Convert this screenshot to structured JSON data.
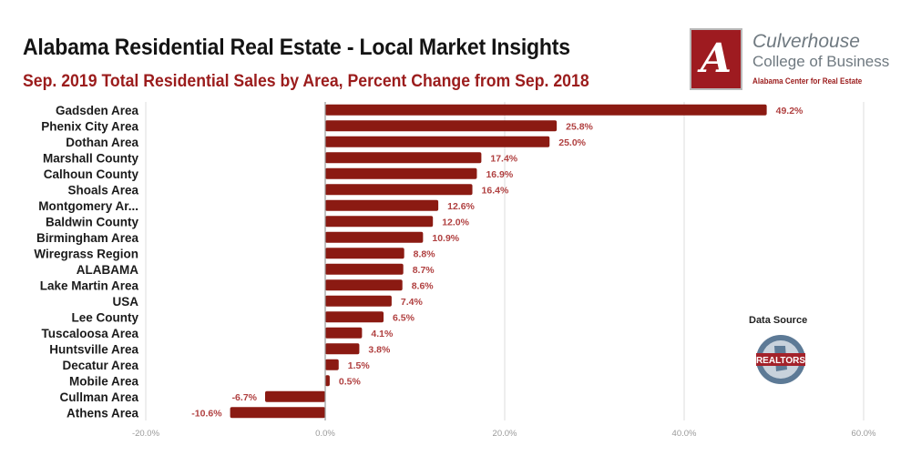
{
  "header": {
    "title": "Alabama Residential Real Estate - Local Market Insights",
    "subtitle": "Sep. 2019 Total Residential Sales by Area, Percent Change from Sep. 2018"
  },
  "branding": {
    "logo_letter": "A",
    "line1": "Culverhouse",
    "line2": "College of Business",
    "line3": "Alabama Center for Real Estate"
  },
  "data_source": {
    "label": "Data Source",
    "badge_text": "REALTORS"
  },
  "colors": {
    "bar": "#8b1a12",
    "value_label": "#b04040",
    "grid": "#dddddd",
    "axis": "#999999"
  },
  "chart_data": {
    "type": "bar",
    "orientation": "horizontal",
    "title": "Sep. 2019 Total Residential Sales by Area, Percent Change from Sep. 2018",
    "xlabel": "",
    "ylabel": "",
    "xlim": [
      -20,
      60
    ],
    "grid": true,
    "categories": [
      "Gadsden Area",
      "Phenix City Area",
      "Dothan Area",
      "Marshall County",
      "Calhoun County",
      "Shoals Area",
      "Montgomery Ar...",
      "Baldwin County",
      "Birmingham Area",
      "Wiregrass Region",
      "ALABAMA",
      "Lake Martin Area",
      "USA",
      "Lee County",
      "Tuscaloosa Area",
      "Huntsville Area",
      "Decatur Area",
      "Mobile Area",
      "Cullman Area",
      "Athens Area"
    ],
    "values": [
      49.2,
      25.8,
      25.0,
      17.4,
      16.9,
      16.4,
      12.6,
      12.0,
      10.9,
      8.8,
      8.7,
      8.6,
      7.4,
      6.5,
      4.1,
      3.8,
      1.5,
      0.5,
      -6.7,
      -10.6
    ],
    "value_labels": [
      "49.2%",
      "25.8%",
      "25.0%",
      "17.4%",
      "16.9%",
      "16.4%",
      "12.6%",
      "12.0%",
      "10.9%",
      "8.8%",
      "8.7%",
      "8.6%",
      "7.4%",
      "6.5%",
      "4.1%",
      "3.8%",
      "1.5%",
      "0.5%",
      "-6.7%",
      "-10.6%"
    ],
    "x_ticks": [
      -20,
      0,
      20,
      40,
      60
    ],
    "x_tick_labels": [
      "-20.0%",
      "0.0%",
      "20.0%",
      "40.0%",
      "60.0%"
    ]
  }
}
